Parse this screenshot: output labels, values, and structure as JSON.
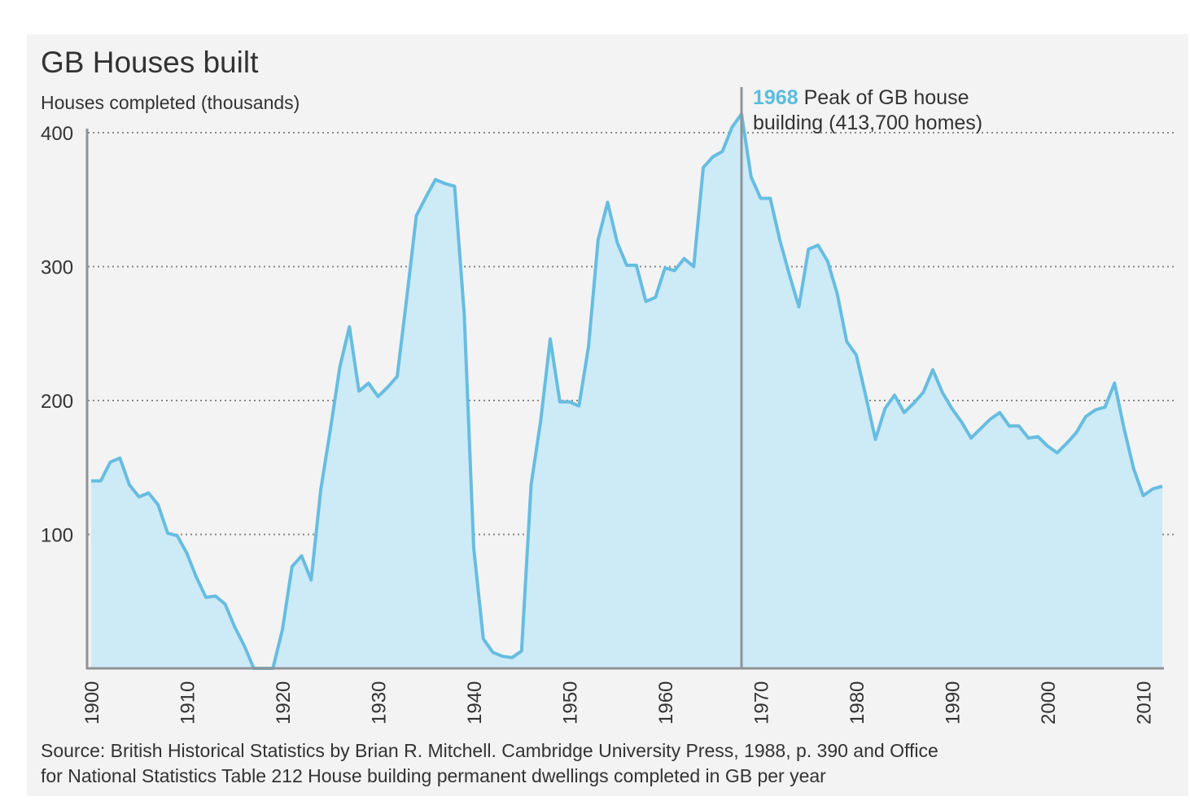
{
  "chart_data": {
    "type": "area",
    "title": "GB Houses built",
    "ylabel": "Houses completed (thousands)",
    "xlabel": "",
    "xlim": [
      1900,
      2012
    ],
    "ylim": [
      0,
      400
    ],
    "yticks": [
      100,
      200,
      300,
      400
    ],
    "xticks": [
      1900,
      1910,
      1920,
      1930,
      1940,
      1950,
      1960,
      1970,
      1980,
      1990,
      2000,
      2010
    ],
    "grid": "horizontal dotted",
    "colors": {
      "line": "#67bde0",
      "fill": "#cdeaf7",
      "title": "#5bbcdc",
      "marker": "#8f9396"
    },
    "annotation": {
      "x": 1968,
      "year": "1968",
      "text_line1": "Peak of GB house",
      "text_line2": "building (413,700 homes)"
    },
    "source_line1": "Source: British Historical Statistics by Brian R. Mitchell. Cambridge University Press, 1988, p. 390 and Office",
    "source_line2": "for National Statistics Table 212 House building permanent dwellings completed in GB per year",
    "x": [
      1900,
      1901,
      1902,
      1903,
      1904,
      1905,
      1906,
      1907,
      1908,
      1909,
      1910,
      1911,
      1912,
      1913,
      1914,
      1915,
      1916,
      1917,
      1918,
      1919,
      1920,
      1921,
      1922,
      1923,
      1924,
      1925,
      1926,
      1927,
      1928,
      1929,
      1930,
      1931,
      1932,
      1933,
      1934,
      1935,
      1936,
      1937,
      1938,
      1939,
      1940,
      1941,
      1942,
      1943,
      1944,
      1945,
      1946,
      1947,
      1948,
      1949,
      1950,
      1951,
      1952,
      1953,
      1954,
      1955,
      1956,
      1957,
      1958,
      1959,
      1960,
      1961,
      1962,
      1963,
      1964,
      1965,
      1966,
      1967,
      1968,
      1969,
      1970,
      1971,
      1972,
      1973,
      1974,
      1975,
      1976,
      1977,
      1978,
      1979,
      1980,
      1981,
      1982,
      1983,
      1984,
      1985,
      1986,
      1987,
      1988,
      1989,
      1990,
      1991,
      1992,
      1993,
      1994,
      1995,
      1996,
      1997,
      1998,
      1999,
      2000,
      2001,
      2002,
      2003,
      2004,
      2005,
      2006,
      2007,
      2008,
      2009,
      2010,
      2011,
      2012
    ],
    "values": [
      140,
      140,
      154,
      157,
      137,
      128,
      131,
      122,
      101,
      99,
      86,
      68,
      53,
      54,
      48,
      31,
      17,
      0,
      0,
      0,
      29,
      76,
      84,
      66,
      133,
      178,
      225,
      255,
      207,
      213,
      203,
      210,
      218,
      277,
      338,
      352,
      365,
      362,
      360,
      265,
      90,
      22,
      12,
      9,
      8,
      13,
      137,
      185,
      246,
      199,
      199,
      196,
      240,
      320,
      348,
      318,
      301,
      301,
      274,
      277,
      299,
      297,
      306,
      300,
      374,
      382,
      386,
      404,
      414,
      367,
      351,
      351,
      320,
      294,
      270,
      313,
      316,
      304,
      280,
      244,
      234,
      203,
      171,
      194,
      204,
      191,
      198,
      206,
      223,
      206,
      194,
      184,
      172,
      179,
      186,
      191,
      181,
      181,
      172,
      173,
      166,
      161,
      168,
      176,
      188,
      193,
      195,
      213,
      179,
      149,
      129,
      134,
      136
    ]
  }
}
